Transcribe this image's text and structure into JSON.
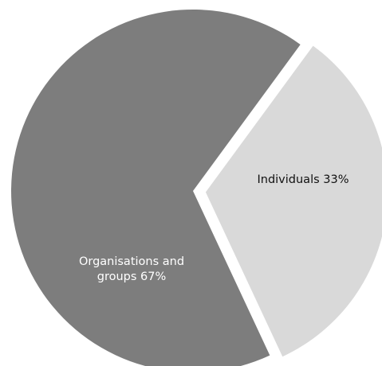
{
  "chart_data": {
    "type": "pie",
    "title": "",
    "slices": [
      {
        "label_lines": [
          "Organisations and",
          "groups 67%"
        ],
        "value": 67,
        "color": "#7d7d7d",
        "label_color": "#ffffff"
      },
      {
        "label_lines": [
          "Individuals 33%"
        ],
        "value": 33,
        "color": "#d9d9d9",
        "label_color": "#111111"
      }
    ],
    "legend": "none"
  }
}
